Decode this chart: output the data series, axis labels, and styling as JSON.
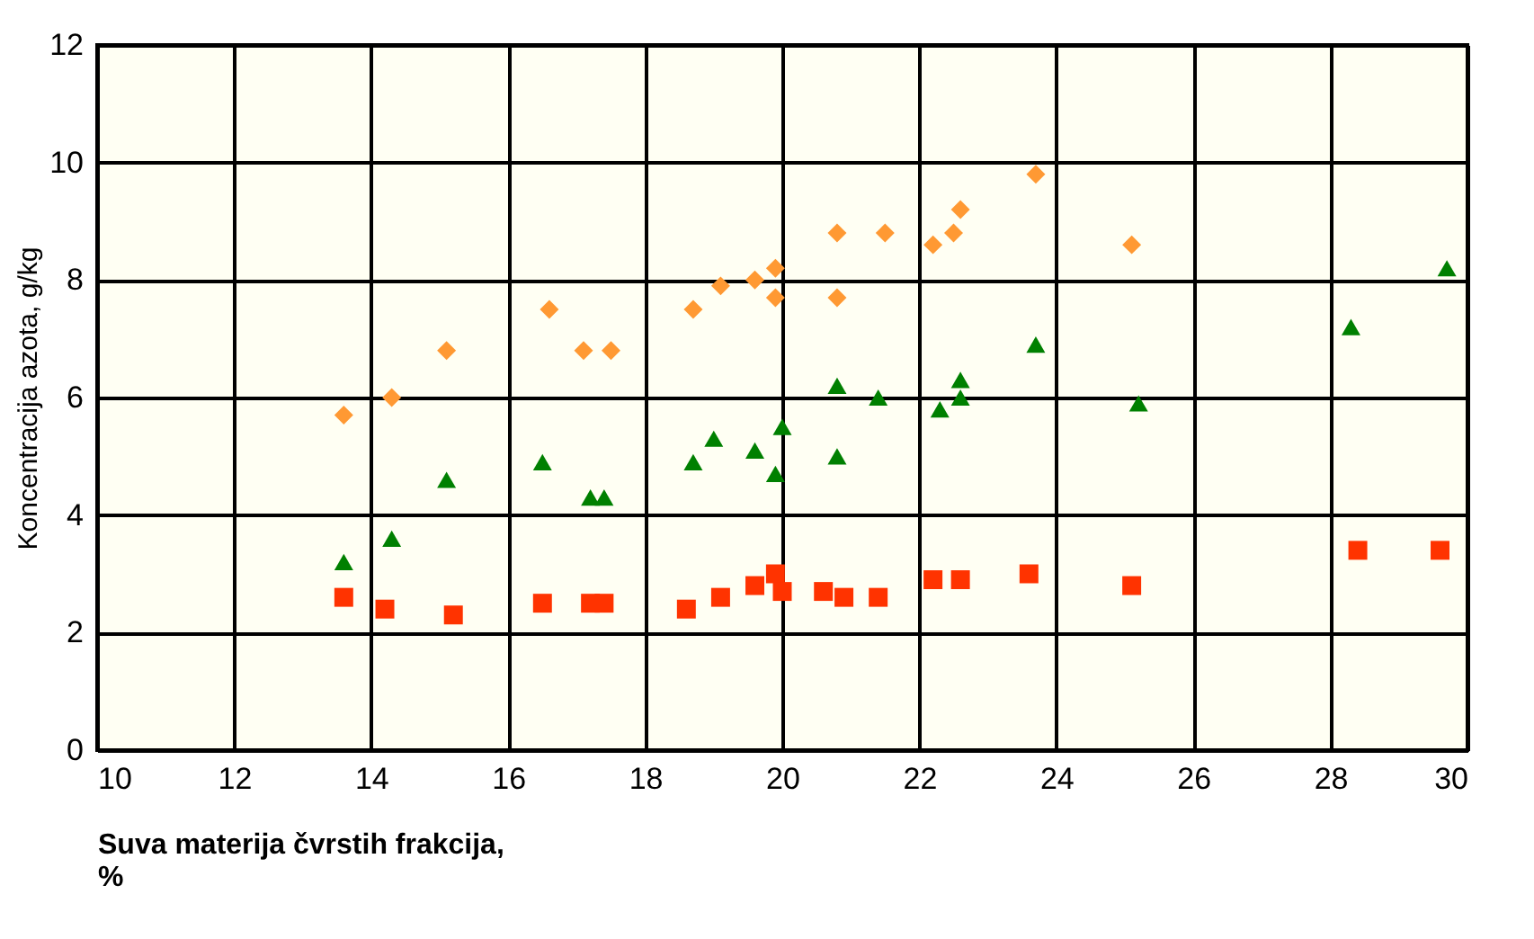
{
  "chart_data": {
    "type": "scatter",
    "xlabel": "Suva materija čvrstih frakcija,\n%",
    "ylabel": "Koncentracija azota, g/kg",
    "xlim": [
      10,
      30
    ],
    "xticks": [
      10,
      12,
      14,
      16,
      18,
      20,
      22,
      24,
      26,
      28,
      30
    ],
    "ylim": [
      0,
      12
    ],
    "yticks": [
      0,
      2,
      4,
      6,
      8,
      10,
      12
    ],
    "grid": true,
    "series": [
      {
        "color": "#ff9933",
        "marker": "diamond",
        "x": [
          13.6,
          14.3,
          15.1,
          16.6,
          17.1,
          17.5,
          18.7,
          19.1,
          19.6,
          19.9,
          19.9,
          20.8,
          20.8,
          21.5,
          22.2,
          22.5,
          22.6,
          23.7,
          25.1
        ],
        "values": [
          5.7,
          6.0,
          6.8,
          7.5,
          6.8,
          6.8,
          7.5,
          7.9,
          8.0,
          8.2,
          7.7,
          8.8,
          7.7,
          8.8,
          8.6,
          8.8,
          9.2,
          9.8,
          8.6
        ]
      },
      {
        "color": "#008000",
        "marker": "triangle",
        "x": [
          13.6,
          14.3,
          15.1,
          16.5,
          17.2,
          17.4,
          18.7,
          19.0,
          19.6,
          19.9,
          20.0,
          20.8,
          20.8,
          21.4,
          22.3,
          22.6,
          22.6,
          23.7,
          25.2,
          28.3,
          29.7
        ],
        "values": [
          3.2,
          3.6,
          4.6,
          4.9,
          4.3,
          4.3,
          4.9,
          5.3,
          5.1,
          4.7,
          5.5,
          6.2,
          5.0,
          6.0,
          5.8,
          6.0,
          6.3,
          6.9,
          5.9,
          7.2,
          8.2
        ]
      },
      {
        "color": "#ff3300",
        "marker": "square",
        "x": [
          13.6,
          14.2,
          15.2,
          16.5,
          17.2,
          17.4,
          18.6,
          19.1,
          19.6,
          19.9,
          20.0,
          20.6,
          20.9,
          21.4,
          22.2,
          22.6,
          23.6,
          25.1,
          28.4,
          29.6
        ],
        "values": [
          2.6,
          2.4,
          2.3,
          2.5,
          2.5,
          2.5,
          2.4,
          2.6,
          2.8,
          3.0,
          2.7,
          2.7,
          2.6,
          2.6,
          2.9,
          2.9,
          3.0,
          2.8,
          3.4,
          3.4
        ]
      }
    ]
  }
}
